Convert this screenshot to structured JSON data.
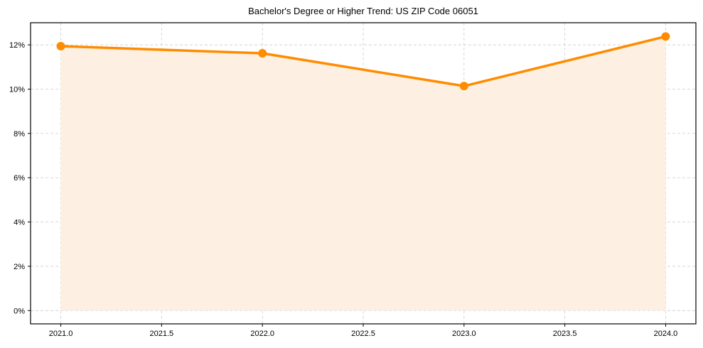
{
  "chart_data": {
    "type": "line",
    "title": "Bachelor's Degree or Higher Trend: US ZIP Code 06051",
    "xlabel": "",
    "ylabel": "",
    "x": [
      2021,
      2022,
      2023,
      2024
    ],
    "series": [
      {
        "name": "Bachelor's Degree or Higher",
        "values": [
          11.94,
          11.62,
          10.14,
          12.38
        ],
        "unit": "%",
        "color": "#ff8c00",
        "fill": true,
        "fill_color": "#fdf0e2",
        "marker": "circle"
      }
    ],
    "xlim": [
      2020.85,
      2024.15
    ],
    "ylim": [
      -0.6,
      13.0
    ],
    "x_ticks": [
      2021.0,
      2021.5,
      2022.0,
      2022.5,
      2023.0,
      2023.5,
      2024.0
    ],
    "x_tick_labels": [
      "2021.0",
      "2021.5",
      "2022.0",
      "2022.5",
      "2023.0",
      "2023.5",
      "2024.0"
    ],
    "y_ticks": [
      0,
      2,
      4,
      6,
      8,
      10,
      12
    ],
    "y_tick_labels": [
      "0%",
      "2%",
      "4%",
      "6%",
      "8%",
      "10%",
      "12%"
    ],
    "grid": true,
    "grid_style": "dashed",
    "legend": null
  }
}
